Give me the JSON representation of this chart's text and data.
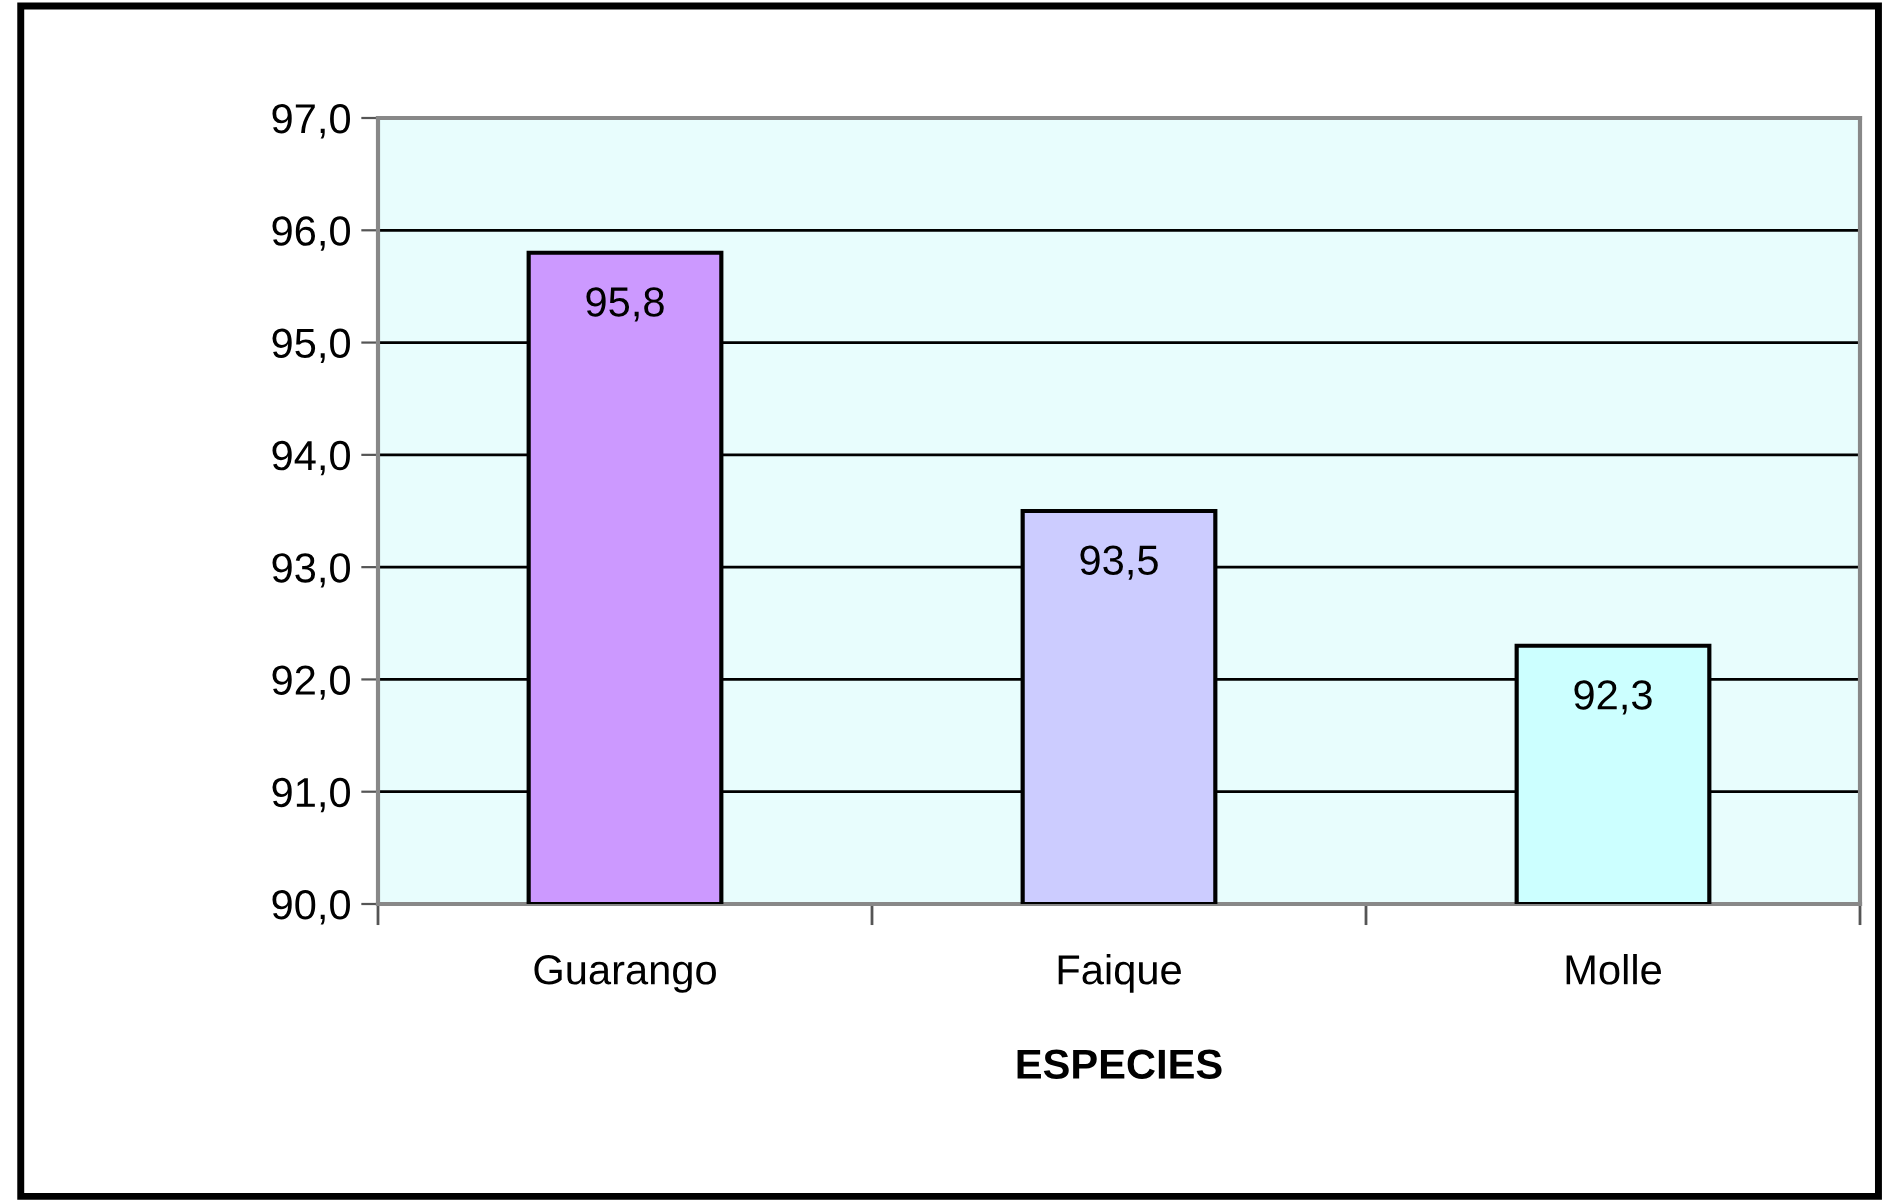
{
  "chart_data": {
    "type": "bar",
    "xlabel": "ESPECIES",
    "categories": [
      "Guarango",
      "Faique",
      "Molle"
    ],
    "values": [
      95.8,
      93.5,
      92.3
    ],
    "colors": [
      "#cc99ff",
      "#ccccff",
      "#ccffff"
    ],
    "value_labels": [
      "95,8",
      "93,5",
      "92,3"
    ],
    "ylim": [
      90,
      97
    ],
    "yticks": [
      {
        "value": 90,
        "label": "90,0"
      },
      {
        "value": 91,
        "label": "91,0"
      },
      {
        "value": 92,
        "label": "92,0"
      },
      {
        "value": 93,
        "label": "93,0"
      },
      {
        "value": 94,
        "label": "94,0"
      },
      {
        "value": 95,
        "label": "95,0"
      },
      {
        "value": 96,
        "label": "96,0"
      },
      {
        "value": 97,
        "label": "97,0"
      }
    ],
    "grid": "y"
  }
}
